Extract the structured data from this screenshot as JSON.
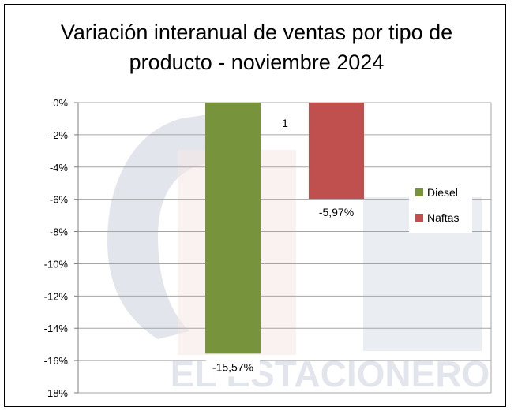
{
  "chart_data": {
    "type": "bar",
    "title": "Variación interanual  de ventas por tipo de\nproducto - noviembre 2024",
    "categories": [
      "1"
    ],
    "series": [
      {
        "name": "Diesel",
        "values": [
          -15.57
        ],
        "label": "-15,57%",
        "color": "#77933c"
      },
      {
        "name": "Naftas",
        "values": [
          -5.97
        ],
        "label": "-5,97%",
        "color": "#c0504d"
      }
    ],
    "ylim": [
      -18,
      0
    ],
    "yticks": [
      0,
      -2,
      -4,
      -6,
      -8,
      -10,
      -12,
      -14,
      -16,
      -18
    ],
    "ytick_labels": [
      "0%",
      "-2%",
      "-4%",
      "-6%",
      "-8%",
      "-10%",
      "-12%",
      "-14%",
      "-16%",
      "-18%"
    ],
    "grid": true,
    "legend_position": "right"
  },
  "watermark": "EL ESTACIONERO"
}
